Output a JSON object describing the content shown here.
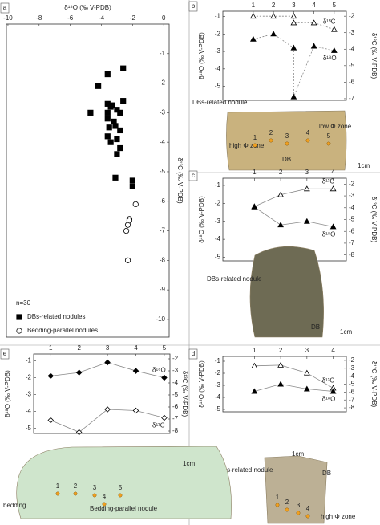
{
  "chart_data": [
    {
      "type": "scatter",
      "label": "a",
      "xlabel": "δ¹⁸O (‰ V-PDB)",
      "ylabel": "δ¹³C (‰ V-PDB)",
      "note": "n=30",
      "legend": "bottom-left",
      "xlim": [
        -10.1,
        0.35
      ],
      "xticks": [
        -10,
        -8,
        -6,
        -4,
        -2,
        0
      ],
      "ylim": [
        0,
        -10.6
      ],
      "yticks": [
        -1,
        -2,
        -3,
        -4,
        -5,
        -6,
        -7,
        -8,
        -9,
        -10
      ],
      "series": [
        {
          "name": "DBs-related nodules",
          "marker": "square-filled",
          "color": "#000000",
          "x": [
            -2.6,
            -3.6,
            -4.2,
            -2.6,
            -3.6,
            -3.4,
            -3.0,
            -3.6,
            -2.8,
            -4.7,
            -3.6,
            -3.2,
            -3.5,
            -2.8,
            -3.6,
            -3.4,
            -2.8,
            -3.0,
            -3.1,
            -2.0,
            -2.0,
            -3.0,
            -3.3,
            -3.1
          ],
          "values": [
            -1.5,
            -1.7,
            -2.1,
            -2.6,
            -2.7,
            -2.8,
            -2.9,
            -3.0,
            -3.0,
            -3.0,
            -3.2,
            -3.3,
            -3.5,
            -3.6,
            -3.8,
            -4.0,
            -4.2,
            -4.4,
            -5.2,
            -5.3,
            -5.5,
            -3.9,
            -2.75,
            -3.45
          ]
        },
        {
          "name": "Bedding-parallel nodules",
          "marker": "circle-open",
          "color": "#000000",
          "x": [
            -1.8,
            -2.2,
            -2.3,
            -2.4,
            -2.3,
            -2.2
          ],
          "values": [
            -6.1,
            -6.6,
            -6.8,
            -7.0,
            -8.0,
            -6.65
          ]
        }
      ]
    },
    {
      "type": "line",
      "label": "b",
      "ylabel": "δ¹⁸O (‰ V-PDB)",
      "y2label": "δ¹³C (‰ V-PDB)",
      "line_color": "#888888",
      "line_style": "dashed",
      "x": [
        1,
        2,
        3,
        3,
        4,
        5
      ],
      "xlim": [
        -0.5,
        5.6
      ],
      "xticks": [
        1,
        2,
        3,
        4,
        5
      ],
      "ylim": [
        -0.7,
        -5.8
      ],
      "yticks": [
        -1,
        -2,
        -3,
        -4,
        -5
      ],
      "y2lim": [
        -1.7,
        -7.1
      ],
      "y2ticks": [
        -2,
        -3,
        -4,
        -5,
        -6,
        -7
      ],
      "series": [
        {
          "name": "δ¹³C",
          "axis": "y2",
          "marker": "triangle-open",
          "color": "#000000",
          "values": [
            -2.0,
            -2.0,
            -2.0,
            -2.4,
            -2.4,
            -2.8
          ]
        },
        {
          "name": "δ¹⁸O",
          "axis": "y",
          "marker": "triangle-filled",
          "color": "#000000",
          "values": [
            -2.3,
            -2.0,
            -2.8,
            -5.6,
            -2.7,
            -2.95
          ]
        }
      ],
      "photo": {
        "labels": [
          "DBs-related nodule",
          "low Φ zone",
          "high Φ zone",
          "DB",
          "1cm",
          "1",
          "2",
          "3",
          "4",
          "5"
        ]
      }
    },
    {
      "type": "line",
      "label": "c",
      "ylabel": "δ¹⁸O (‰ V-PDB)",
      "y2label": "δ¹³C (‰ V-PDB)",
      "line_color": "#888888",
      "line_style": "solid",
      "x": [
        1,
        2,
        3,
        4
      ],
      "xlim": [
        -0.2,
        4.5
      ],
      "xticks": [
        1,
        2,
        3,
        4
      ],
      "ylim": [
        -0.6,
        -5.2
      ],
      "yticks": [
        -1,
        -2,
        -3,
        -4,
        -5
      ],
      "y2lim": [
        -1.5,
        -8.5
      ],
      "y2ticks": [
        -2,
        -3,
        -4,
        -5,
        -6,
        -7,
        -8
      ],
      "series": [
        {
          "name": "δ¹³C",
          "axis": "y2",
          "marker": "triangle-open",
          "color": "#000000",
          "values": [
            -3.9,
            -2.9,
            -2.4,
            -2.4
          ]
        },
        {
          "name": "δ¹⁸O",
          "axis": "y",
          "marker": "triangle-filled",
          "color": "#000000",
          "values": [
            -2.2,
            -3.2,
            -3.0,
            -3.3
          ]
        }
      ],
      "photo": {
        "labels": [
          "DBs-related nodule",
          "DB",
          "1cm"
        ]
      }
    },
    {
      "type": "line",
      "label": "d",
      "ylabel": "δ¹⁸O (‰ V-PDB)",
      "y2label": "δ¹³C (‰ V-PDB)",
      "line_color": "#888888",
      "line_style": "solid",
      "x": [
        1,
        2,
        3,
        4
      ],
      "xlim": [
        -0.2,
        4.5
      ],
      "xticks": [
        1,
        2,
        3,
        4
      ],
      "ylim": [
        -0.6,
        -5.2
      ],
      "yticks": [
        -1,
        -2,
        -3,
        -4,
        -5
      ],
      "y2lim": [
        -1.5,
        -8.5
      ],
      "y2ticks": [
        -2,
        -3,
        -4,
        -5,
        -6,
        -7,
        -8
      ],
      "series": [
        {
          "name": "δ¹³C",
          "axis": "y2",
          "marker": "triangle-open",
          "color": "#000000",
          "values": [
            -2.7,
            -2.6,
            -3.6,
            -5.5
          ]
        },
        {
          "name": "δ¹⁸O",
          "axis": "y",
          "marker": "triangle-filled",
          "color": "#000000",
          "values": [
            -3.5,
            -2.9,
            -3.3,
            -3.5
          ]
        }
      ],
      "photo": {
        "labels": [
          "DBs-related nodule",
          "DB",
          "1cm",
          "high Φ zone",
          "1",
          "2",
          "3",
          "4"
        ]
      }
    },
    {
      "type": "line",
      "label": "e",
      "ylabel": "δ¹⁸O (‰ V-PDB)",
      "y2label": "δ¹³C (‰ V-PDB)",
      "line_color": "#888888",
      "line_style": "solid",
      "x": [
        1,
        2,
        3,
        4,
        5
      ],
      "xlim": [
        0.4,
        5.2
      ],
      "xticks": [
        1,
        2,
        3,
        4,
        5
      ],
      "ylim": [
        -0.6,
        -5.3
      ],
      "yticks": [
        -1,
        -2,
        -3,
        -4,
        -5
      ],
      "y2lim": [
        -1.6,
        -8.2
      ],
      "y2ticks": [
        -2,
        -3,
        -4,
        -5,
        -6,
        -7,
        -8
      ],
      "series": [
        {
          "name": "δ¹⁸O",
          "axis": "y",
          "marker": "diamond-filled",
          "color": "#000000",
          "values": [
            -1.9,
            -1.7,
            -1.1,
            -1.6,
            -2.0
          ]
        },
        {
          "name": "δ¹³C",
          "axis": "y2",
          "marker": "diamond-open",
          "color": "#000000",
          "values": [
            -7.1,
            -8.1,
            -6.2,
            -6.3,
            -6.9
          ]
        }
      ],
      "photo": {
        "labels": [
          "1cm",
          "bedding",
          "Bedding-parallel nodule",
          "1",
          "2",
          "3",
          "4",
          "5"
        ]
      }
    }
  ]
}
